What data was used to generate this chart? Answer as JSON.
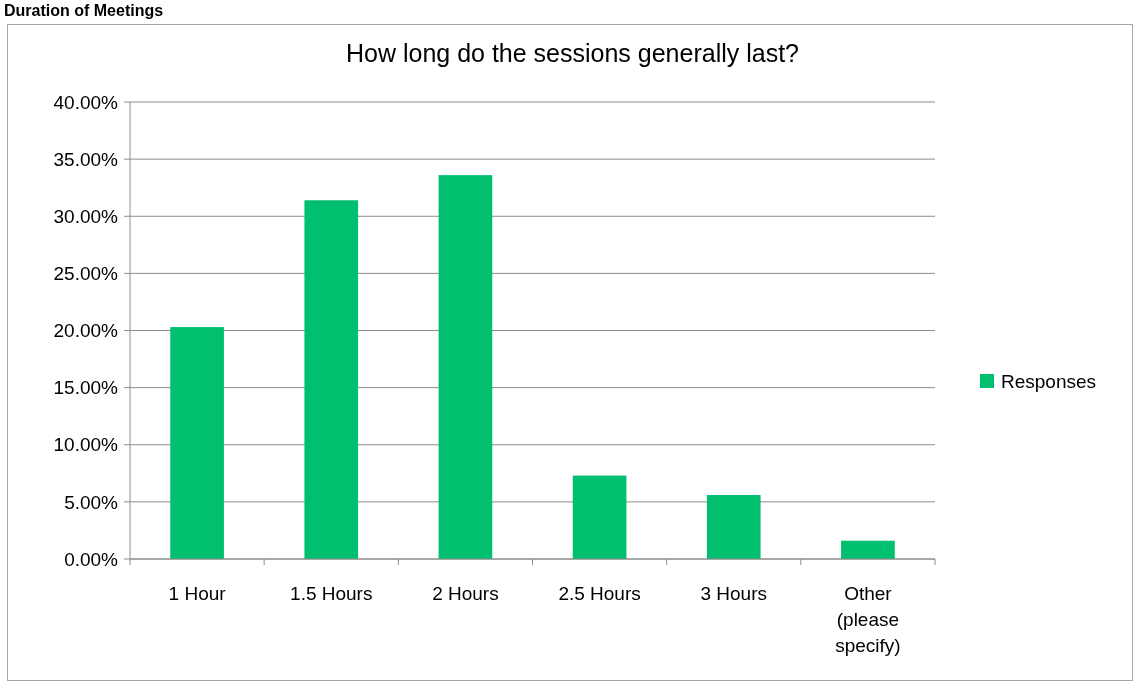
{
  "chart_data": {
    "type": "bar",
    "title": "How long do the sessions generally last?",
    "annotations": [
      "Duration of Meetings"
    ],
    "categories": [
      "1 Hour",
      "1.5 Hours",
      "2 Hours",
      "2.5 Hours",
      "3 Hours",
      "Other (please specify)"
    ],
    "series": [
      {
        "name": "Responses",
        "color": "#00bf6f",
        "values": [
          20.3,
          31.4,
          33.6,
          7.3,
          5.6,
          1.6
        ]
      }
    ],
    "ylim": [
      0,
      40
    ],
    "yticks": [
      {
        "value": 0,
        "label": "0.00%"
      },
      {
        "value": 5,
        "label": "5.00%"
      },
      {
        "value": 10,
        "label": "10.00%"
      },
      {
        "value": 15,
        "label": "15.00%"
      },
      {
        "value": 20,
        "label": "20.00%"
      },
      {
        "value": 25,
        "label": "25.00%"
      },
      {
        "value": 30,
        "label": "30.00%"
      },
      {
        "value": 35,
        "label": "35.00%"
      },
      {
        "value": 40,
        "label": "40.00%"
      }
    ],
    "grid": "y",
    "legend": "right"
  }
}
